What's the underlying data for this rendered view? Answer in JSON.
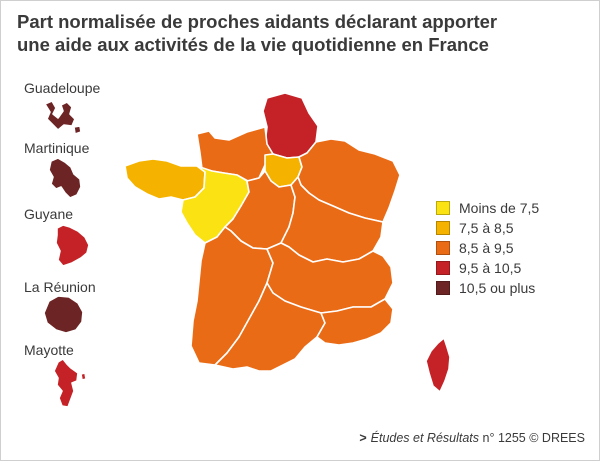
{
  "title": {
    "line1": "Part normalisée de proches aidants déclarant apporter",
    "line2": "une aide aux activités de la vie quotidienne en France"
  },
  "colors": {
    "moins_7_5": "#fbe213",
    "7_5_8_5": "#f5b300",
    "8_5_9_5": "#ea6b16",
    "9_5_10_5": "#c42226",
    "10_5_plus": "#6d2424",
    "border": "#ffffff"
  },
  "legend": [
    {
      "label": "Moins de 7,5",
      "color": "#fbe213"
    },
    {
      "label": "7,5 à 8,5",
      "color": "#f5b300"
    },
    {
      "label": "8,5 à 9,5",
      "color": "#ea6b16"
    },
    {
      "label": "9,5 à 10,5",
      "color": "#c42226"
    },
    {
      "label": "10,5 ou plus",
      "color": "#6d2424"
    }
  ],
  "overseas": [
    {
      "name": "Guadeloupe",
      "class": "10,5 ou plus"
    },
    {
      "name": "Martinique",
      "class": "10,5 ou plus"
    },
    {
      "name": "Guyane",
      "class": "9,5 à 10,5"
    },
    {
      "name": "La Réunion",
      "class": "10,5 ou plus"
    },
    {
      "name": "Mayotte",
      "class": "9,5 à 10,5"
    }
  ],
  "regions": [
    {
      "name": "Hauts-de-France",
      "class": "9,5 à 10,5"
    },
    {
      "name": "Normandie",
      "class": "8,5 à 9,5"
    },
    {
      "name": "Île-de-France",
      "class": "7,5 à 8,5"
    },
    {
      "name": "Grand Est",
      "class": "8,5 à 9,5"
    },
    {
      "name": "Bretagne",
      "class": "7,5 à 8,5"
    },
    {
      "name": "Pays de la Loire",
      "class": "Moins de 7,5"
    },
    {
      "name": "Centre-Val de Loire",
      "class": "8,5 à 9,5"
    },
    {
      "name": "Bourgogne-Franche-Comté",
      "class": "8,5 à 9,5"
    },
    {
      "name": "Nouvelle-Aquitaine",
      "class": "8,5 à 9,5"
    },
    {
      "name": "Auvergne-Rhône-Alpes",
      "class": "8,5 à 9,5"
    },
    {
      "name": "Occitanie",
      "class": "8,5 à 9,5"
    },
    {
      "name": "Provence-Alpes-Côte d'Azur",
      "class": "8,5 à 9,5"
    },
    {
      "name": "Corse",
      "class": "9,5 à 10,5"
    }
  ],
  "source": {
    "arrow": ">",
    "publication": "Études et Résultats",
    "number": "n° 1255 © DREES"
  }
}
